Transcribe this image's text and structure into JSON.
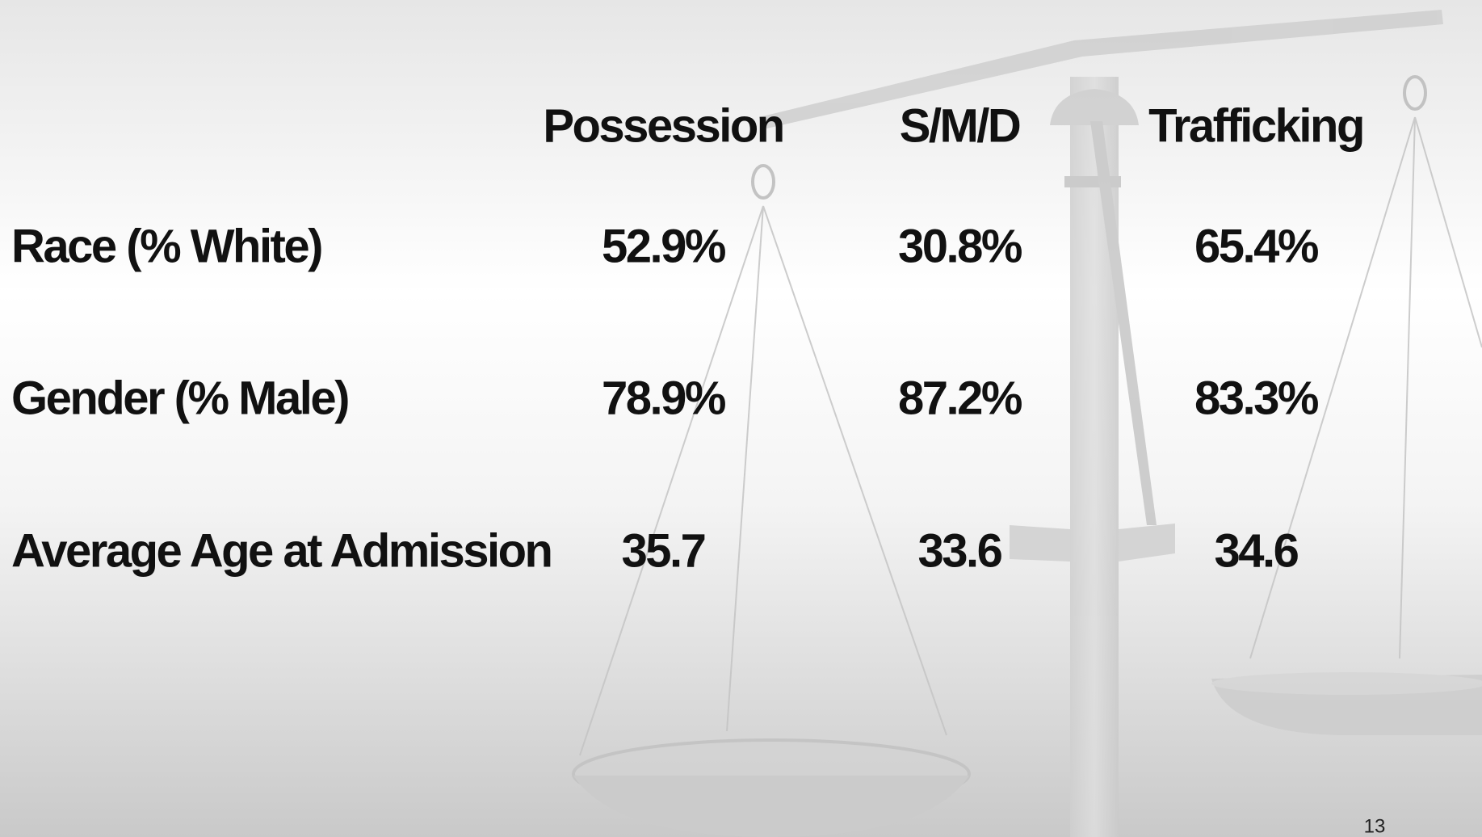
{
  "table": {
    "columns": [
      "Possession",
      "S/M/D",
      "Trafficking"
    ],
    "rows": [
      {
        "label": "Race (% White)",
        "cells": [
          "52.9%",
          "30.8%",
          "65.4%"
        ]
      },
      {
        "label": "Gender (% Male)",
        "cells": [
          "78.9%",
          "87.2%",
          "83.3%"
        ]
      },
      {
        "label": "Average Age at Admission",
        "cells": [
          "35.7",
          "33.6",
          "34.6"
        ]
      }
    ]
  },
  "footer": {
    "page_number": "13"
  }
}
